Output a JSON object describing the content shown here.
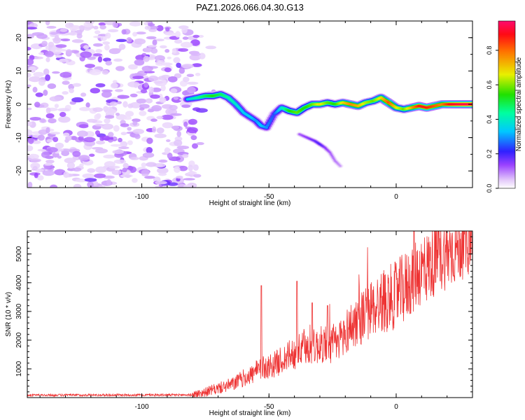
{
  "chart_data": [
    {
      "type": "heatmap",
      "title": "PAZ1.2026.066.04.30.G13",
      "xlabel": "Height of straight line (km)",
      "ylabel": "Frequency (Hz)",
      "xlim": [
        -145,
        30
      ],
      "ylim": [
        -25,
        25
      ],
      "xticks": [
        -100,
        -50,
        0
      ],
      "yticks": [
        -20,
        -10,
        0,
        10,
        20
      ],
      "colorbar": {
        "label": "Normalized spectral amplitude",
        "range": [
          0,
          0.97
        ],
        "ticks": [
          0.0,
          0.2,
          0.4,
          0.6,
          0.8
        ]
      },
      "ridge": {
        "x": [
          -82,
          -78,
          -75,
          -72,
          -69,
          -66,
          -63,
          -60,
          -57,
          -55,
          -53,
          -51,
          -48,
          -45,
          -42,
          -39,
          -36,
          -33,
          -30,
          -27,
          -24,
          -21,
          -18,
          -15,
          -12,
          -9,
          -6,
          -3,
          0,
          3,
          6,
          9,
          12,
          15,
          18,
          21,
          24,
          27,
          30
        ],
        "y": [
          1.5,
          2,
          2.5,
          2.5,
          3,
          2,
          0,
          -2.5,
          -4,
          -5,
          -6.5,
          -7,
          -3,
          -1,
          -2,
          -2.5,
          -1,
          0,
          0,
          0.5,
          0,
          0.5,
          0,
          -0.5,
          0.5,
          1,
          2,
          0.5,
          -1,
          -1.5,
          -1,
          -0.5,
          -1,
          -0.5,
          0,
          0,
          0,
          0,
          0
        ],
        "amp": [
          0.35,
          0.45,
          0.5,
          0.55,
          0.5,
          0.45,
          0.4,
          0.35,
          0.35,
          0.3,
          0.35,
          0.3,
          0.25,
          0.4,
          0.55,
          0.6,
          0.55,
          0.6,
          0.7,
          0.6,
          0.55,
          0.7,
          0.8,
          0.75,
          0.65,
          0.6,
          0.7,
          0.85,
          0.7,
          0.6,
          0.75,
          0.9,
          0.9,
          0.85,
          0.8,
          0.92,
          0.95,
          0.97,
          0.97
        ]
      },
      "branch": {
        "x": [
          -38,
          -35,
          -32,
          -30,
          -28,
          -26,
          -24,
          -22
        ],
        "y": [
          -9,
          -10,
          -11,
          -12,
          -13,
          -14.5,
          -17,
          -18.5
        ],
        "amp": [
          0.12,
          0.15,
          0.18,
          0.2,
          0.15,
          0.12,
          0.1,
          0.08
        ]
      }
    },
    {
      "type": "line",
      "xlabel": "Height of straight line (km)",
      "ylabel": "SNR (10 * v/v)",
      "xlim": [
        -145,
        30
      ],
      "ylim": [
        0,
        5800
      ],
      "xticks": [
        -100,
        -50,
        0
      ],
      "yticks": [
        1000,
        2000,
        3000,
        4000,
        5000
      ],
      "color": "#ee3333",
      "series": [
        {
          "name": "SNR",
          "x": [
            -145,
            -80,
            -76,
            -72,
            -68,
            -64,
            -60,
            -56,
            -52,
            -48,
            -44,
            -40,
            -36,
            -32,
            -28,
            -24,
            -20,
            -16,
            -12,
            -8,
            -4,
            0,
            4,
            8,
            12,
            16,
            20,
            24,
            28,
            30
          ],
          "y": [
            80,
            90,
            150,
            250,
            350,
            450,
            650,
            800,
            1000,
            1100,
            1300,
            1500,
            1650,
            1700,
            1800,
            1750,
            2200,
            2550,
            2800,
            3100,
            3300,
            3450,
            3750,
            4200,
            4400,
            4700,
            4900,
            5100,
            5350,
            5400
          ]
        }
      ],
      "peaks": [
        {
          "x": -53,
          "y": 3900
        },
        {
          "x": -39,
          "y": 4050
        },
        {
          "x": -33,
          "y": 3300
        },
        {
          "x": -27,
          "y": 3200
        },
        {
          "x": 7,
          "y": 5780
        }
      ]
    }
  ]
}
